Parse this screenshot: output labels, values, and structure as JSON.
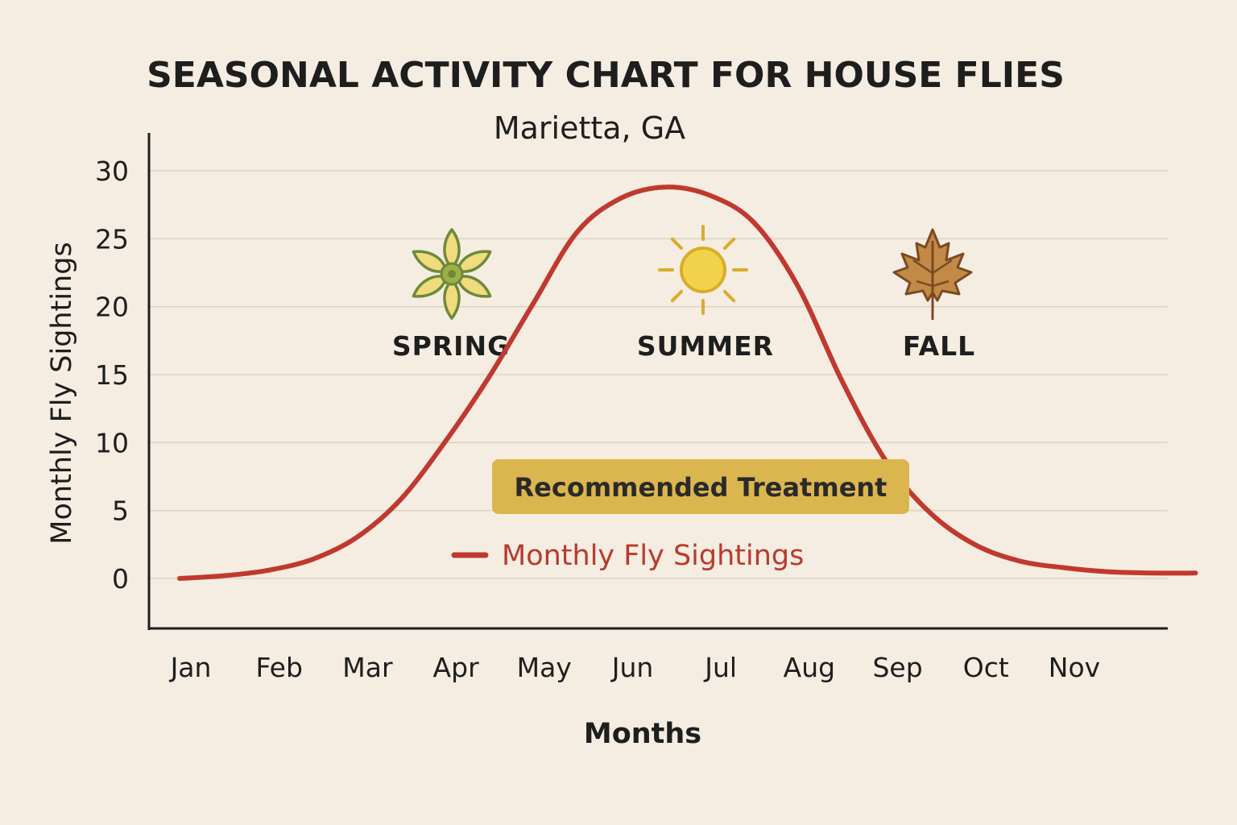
{
  "colors": {
    "background": "#f5ede1",
    "line": "#c0392f",
    "treatment_box": "#dbb54e",
    "spring_petal": "#f0dc7d",
    "spring_outline": "#6d8a3a",
    "sun": "#f2d24c",
    "sun_ray": "#d9ad2a",
    "leaf_fill": "#c28a46",
    "leaf_outline": "#7a4a22"
  },
  "chart_data": {
    "type": "line",
    "title": "SEASONAL ACTIVITY CHART FOR HOUSE FLIES",
    "subtitle": "Marietta, GA",
    "xlabel": "Months",
    "ylabel": "Monthly Fly Sightings",
    "categories": [
      "Jan",
      "Feb",
      "Mar",
      "Apr",
      "May",
      "Jun",
      "Jul",
      "Aug",
      "Sep",
      "Oct",
      "Nov"
    ],
    "ylim": [
      -4,
      32
    ],
    "yticks": [
      0,
      5,
      10,
      15,
      20,
      25,
      30
    ],
    "grid": true,
    "series": [
      {
        "name": "Monthly Fly Sightings",
        "color": "#c0392f",
        "x": [
          0.0,
          0.5,
          1.0,
          1.5,
          2.0,
          2.5,
          3.0,
          3.5,
          4.0,
          4.5,
          5.0,
          5.5,
          6.0,
          6.5,
          7.0,
          7.5,
          8.0,
          8.5,
          9.0,
          9.5,
          10.0,
          10.5,
          11.0,
          11.5
        ],
        "values": [
          0.0,
          0.2,
          0.6,
          1.4,
          3.0,
          5.8,
          10.0,
          14.8,
          20.2,
          25.5,
          28.0,
          28.8,
          28.2,
          26.2,
          21.5,
          14.5,
          8.6,
          4.8,
          2.5,
          1.3,
          0.8,
          0.5,
          0.4,
          0.4
        ]
      }
    ],
    "annotations": {
      "seasons": [
        {
          "label": "SPRING",
          "icon": "flower-icon",
          "x": 3.0
        },
        {
          "label": "SUMMER",
          "icon": "sun-icon",
          "x": 5.85
        },
        {
          "label": "FALL",
          "icon": "maple-leaf-icon",
          "x": 8.5
        }
      ],
      "treatment": "Recommended Treatment"
    },
    "legend": {
      "position": "center-bottom",
      "label": "Monthly Fly Sightings"
    }
  }
}
